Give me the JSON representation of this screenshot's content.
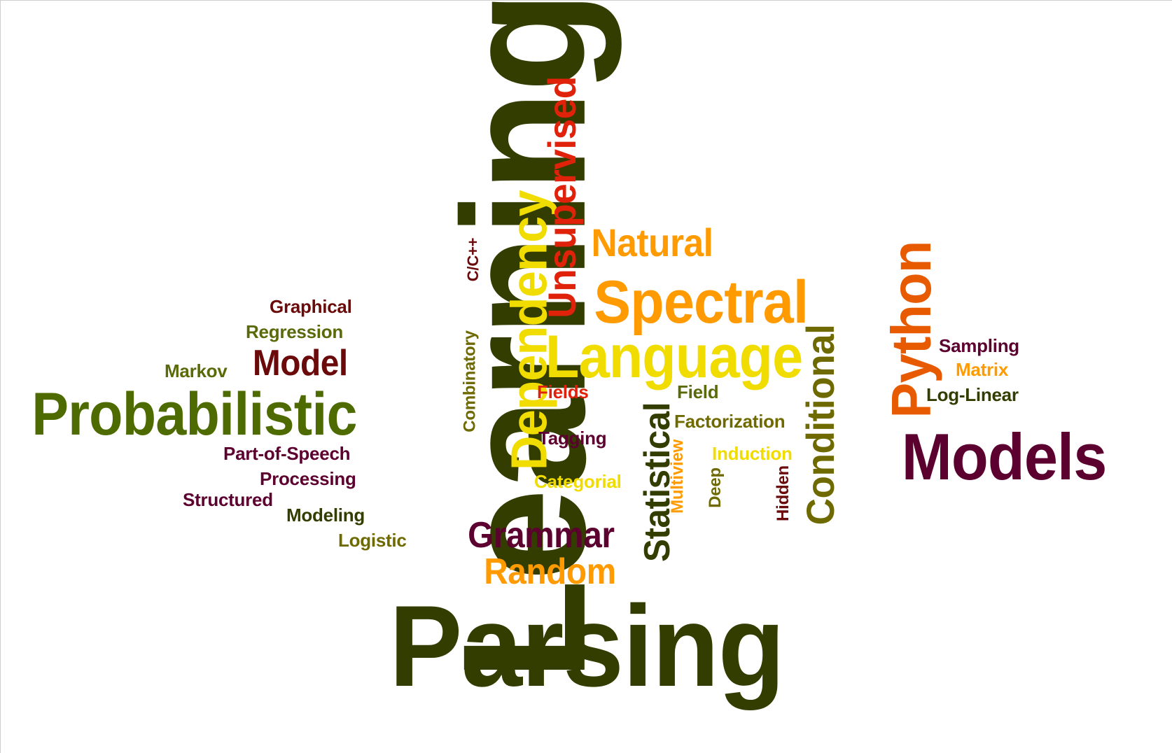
{
  "colors": {
    "olive_dark": "#333d00",
    "olive": "#4d6b00",
    "olive_mid": "#5b6a09",
    "khaki": "#6f6a00",
    "maroon": "#5c0030",
    "brown": "#6a0a0a",
    "red": "#e0220a",
    "orange": "#ff9a00",
    "orange_red": "#e85a00",
    "yellow": "#f1dc00"
  },
  "words": {
    "learning": "Learning",
    "parsing": "Parsing",
    "probabilistic": "Probabilistic",
    "models": "Models",
    "python": "Python",
    "language": "Language",
    "spectral": "Spectral",
    "dependency": "Dependency",
    "unsupervised": "Unsupervised",
    "natural": "Natural",
    "conditional": "Conditional",
    "statistical": "Statistical",
    "grammar": "Grammar",
    "random": "Random",
    "model": "Model",
    "graphical": "Graphical",
    "regression": "Regression",
    "markov": "Markov",
    "part_of_speech": "Part-of-Speech",
    "processing": "Processing",
    "structured": "Structured",
    "modeling": "Modeling",
    "logistic": "Logistic",
    "combinatory": "Combinatory",
    "c_cpp": "C/C++",
    "fields": "Fields",
    "tagging": "Tagging",
    "categorial": "Categorial",
    "field": "Field",
    "factorization": "Factorization",
    "induction": "Induction",
    "multiview": "Multiview",
    "deep": "Deep",
    "hidden": "Hidden",
    "sampling": "Sampling",
    "matrix": "Matrix",
    "log_linear": "Log-Linear"
  }
}
